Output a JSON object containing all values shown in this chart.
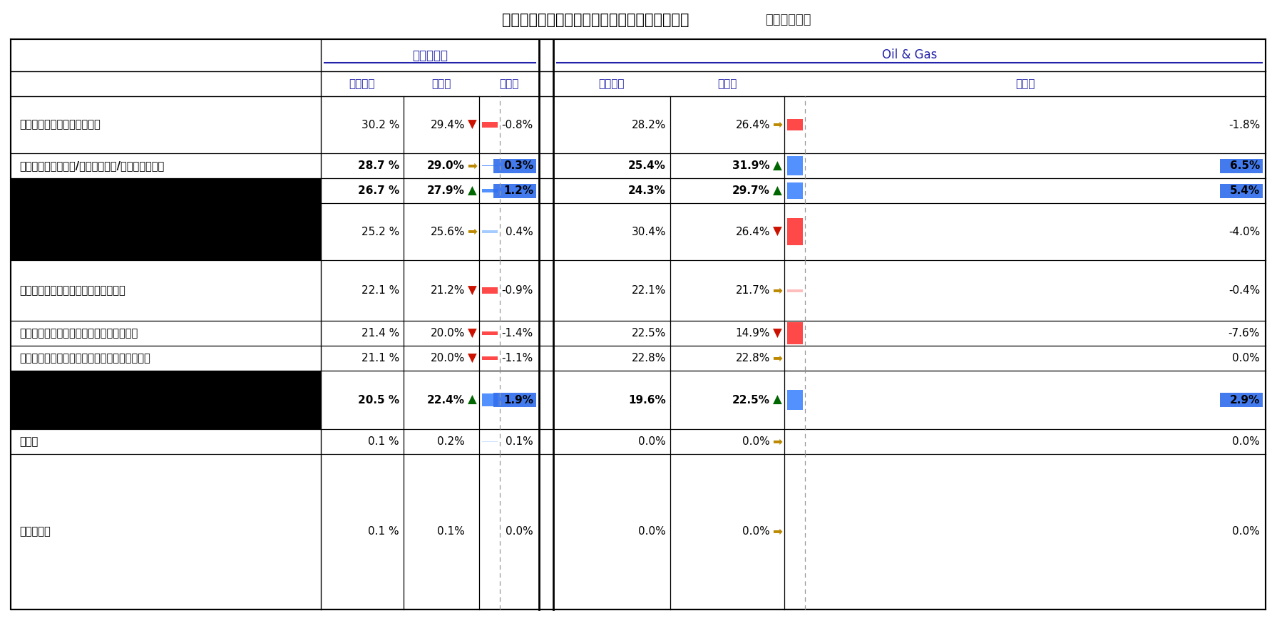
{
  "title_bold": "「サイバーセキュリティ対策を実装する理由」",
  "title_normal": "（業界比較）",
  "group_left": "他業種平均",
  "group_right": "Oil & Gas",
  "col_headers": [
    "これまで",
    "３年後",
    "変化率"
  ],
  "rows": [
    {
      "label": "特定インシデントの再発防止",
      "bold": false,
      "black_bg": false,
      "L_kore": "30.2 %",
      "L_san": "29.4%",
      "L_henka": "-0.8%",
      "L_arrow": "down_red",
      "L_bar": "red",
      "R_kore": "28.2%",
      "R_san": "26.4%",
      "R_henka": "-1.8%",
      "R_arrow": "right_gold",
      "R_bar": "red"
    },
    {
      "label": "ビジネスパートナー/クライアント/顧客からの要請",
      "bold": true,
      "black_bg": false,
      "L_kore": "28.7 %",
      "L_san": "29.0%",
      "L_henka": "0.3%",
      "L_arrow": "right_gold",
      "L_bar": "blue",
      "R_kore": "25.4%",
      "R_san": "31.9%",
      "R_henka": "6.5%",
      "R_arrow": "up_green",
      "R_bar": "blue"
    },
    {
      "label": "",
      "bold": true,
      "black_bg": true,
      "L_kore": "26.7 %",
      "L_san": "27.9%",
      "L_henka": "1.2%",
      "L_arrow": "up_green",
      "L_bar": "blue",
      "R_kore": "24.3%",
      "R_san": "29.7%",
      "R_henka": "5.4%",
      "R_arrow": "up_green",
      "R_bar": "blue"
    },
    {
      "label": "",
      "bold": false,
      "black_bg": true,
      "L_kore": "25.2 %",
      "L_san": "25.6%",
      "L_henka": "0.4%",
      "L_arrow": "right_gold",
      "L_bar": "blue_light",
      "R_kore": "30.4%",
      "R_san": "26.4%",
      "R_henka": "-4.0%",
      "R_arrow": "down_red",
      "R_bar": "red"
    },
    {
      "label": "他社へのサイバー攻撃の報道を受けて",
      "bold": false,
      "black_bg": false,
      "L_kore": "22.1 %",
      "L_san": "21.2%",
      "L_henka": "-0.9%",
      "L_arrow": "down_red",
      "L_bar": "red",
      "R_kore": "22.1%",
      "R_san": "21.7%",
      "R_henka": "-0.4%",
      "R_arrow": "right_gold",
      "R_bar": "red_light"
    },
    {
      "label": "セキュリティ評価における低評価を受けて",
      "bold": false,
      "black_bg": false,
      "L_kore": "21.4 %",
      "L_san": "20.0%",
      "L_henka": "-1.4%",
      "L_arrow": "down_red",
      "L_bar": "red",
      "R_kore": "22.5%",
      "R_san": "14.9%",
      "R_henka": "-7.6%",
      "R_arrow": "down_red",
      "R_bar": "red"
    },
    {
      "label": "ペネトレーションテストでの悪い結果を受けて",
      "bold": false,
      "black_bg": false,
      "L_kore": "21.1 %",
      "L_san": "20.0%",
      "L_henka": "-1.1%",
      "L_arrow": "down_red",
      "L_bar": "red",
      "R_kore": "22.8%",
      "R_san": "22.8%",
      "R_henka": "0.0%",
      "R_arrow": "right_gold",
      "R_bar": "none"
    },
    {
      "label": "",
      "bold": true,
      "black_bg": true,
      "L_kore": "20.5 %",
      "L_san": "22.4%",
      "L_henka": "1.9%",
      "L_arrow": "up_green",
      "L_bar": "blue",
      "R_kore": "19.6%",
      "R_san": "22.5%",
      "R_henka": "2.9%",
      "R_arrow": "up_green",
      "R_bar": "blue"
    },
    {
      "label": "その他",
      "bold": false,
      "black_bg": false,
      "L_kore": "0.1 %",
      "L_san": "0.2%",
      "L_henka": "0.1%",
      "L_arrow": "none",
      "L_bar": "blue_vlight",
      "R_kore": "0.0%",
      "R_san": "0.0%",
      "R_henka": "0.0%",
      "R_arrow": "right_gold",
      "R_bar": "none"
    },
    {
      "label": "分からない",
      "bold": false,
      "black_bg": false,
      "L_kore": "0.1 %",
      "L_san": "0.1%",
      "L_henka": "0.0%",
      "L_arrow": "none",
      "L_bar": "none",
      "R_kore": "0.0%",
      "R_san": "0.0%",
      "R_henka": "0.0%",
      "R_arrow": "right_gold",
      "R_bar": "none"
    }
  ],
  "bar_scale": 8.5,
  "colors": {
    "red_bar": "#FF3030",
    "red_bar_light": "#FF7070",
    "blue_bar": "#4488FF",
    "blue_bar_light": "#88BBFF",
    "blue_bar_vlight": "#AACCFF",
    "blue_bg_solid": "#3370EE",
    "arrow_red": "#CC1100",
    "arrow_green": "#006600",
    "arrow_gold": "#BB8800",
    "header_text": "#2222AA",
    "grid_line": "#000000",
    "dashed_line": "#999999",
    "title_normal_color": "#333333"
  }
}
